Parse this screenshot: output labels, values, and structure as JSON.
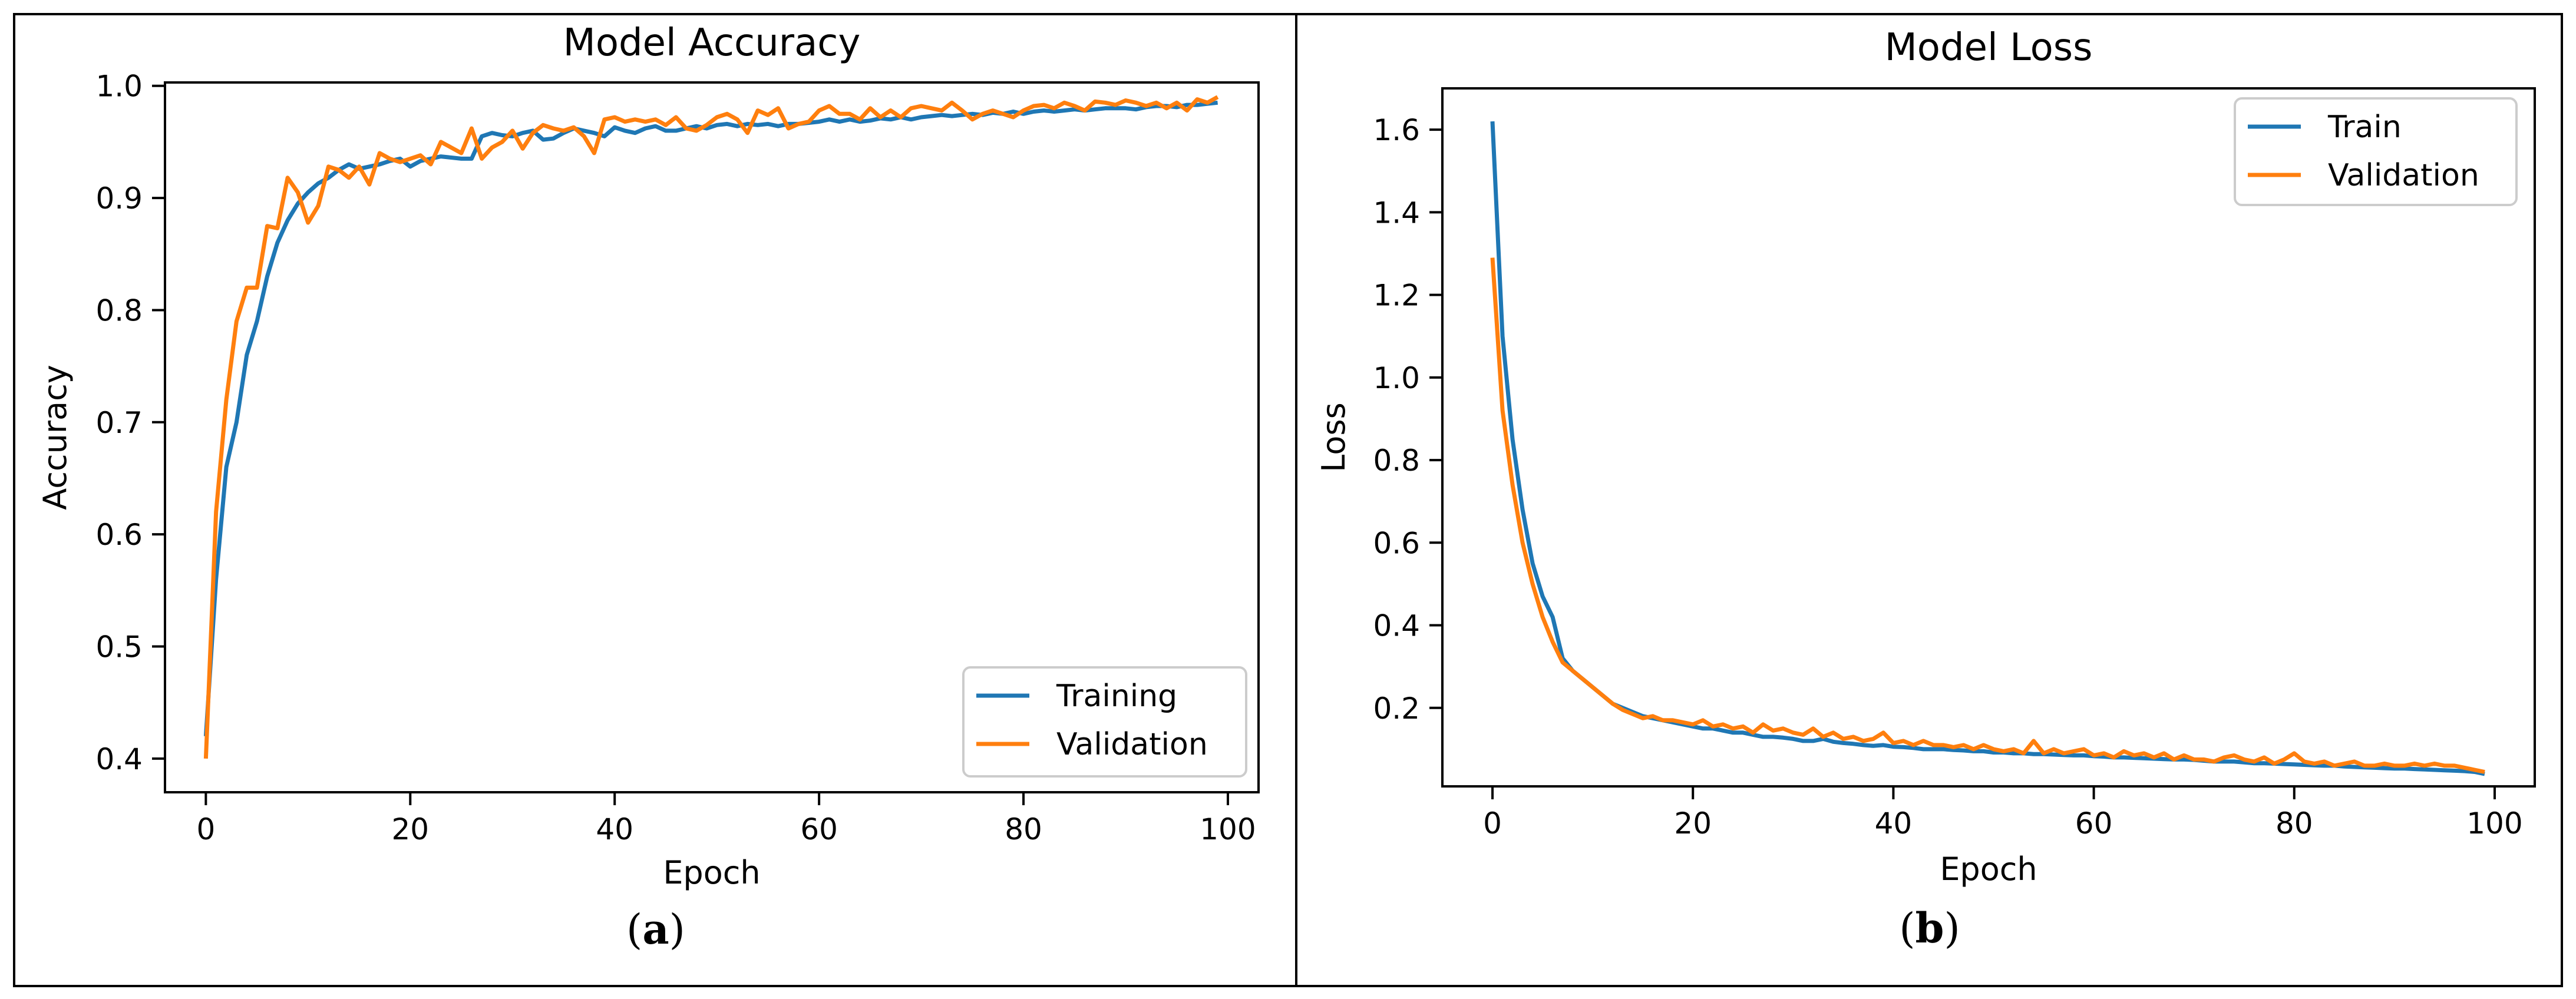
{
  "chart_data": [
    {
      "type": "line",
      "panel_label": "a",
      "title": "Model Accuracy",
      "xlabel": "Epoch",
      "ylabel": "Accuracy",
      "xlim": [
        -4,
        103
      ],
      "ylim": [
        0.37,
        1.003
      ],
      "xticks": [
        0,
        20,
        40,
        60,
        80,
        100
      ],
      "yticks": [
        0.4,
        0.5,
        0.6,
        0.7,
        0.8,
        0.9,
        1.0
      ],
      "xtick_labels": [
        "0",
        "20",
        "40",
        "60",
        "80",
        "100"
      ],
      "ytick_labels": [
        "0.4",
        "0.5",
        "0.6",
        "0.7",
        "0.8",
        "0.9",
        "1.0"
      ],
      "legend_position": "lower-right",
      "series": [
        {
          "name": "Training",
          "color": "#1f77b4",
          "x": [
            0,
            1,
            2,
            3,
            4,
            5,
            6,
            7,
            8,
            9,
            10,
            11,
            12,
            13,
            14,
            15,
            16,
            17,
            18,
            19,
            20,
            21,
            22,
            23,
            24,
            25,
            26,
            27,
            28,
            29,
            30,
            31,
            32,
            33,
            34,
            35,
            36,
            37,
            38,
            39,
            40,
            41,
            42,
            43,
            44,
            45,
            46,
            47,
            48,
            49,
            50,
            51,
            52,
            53,
            54,
            55,
            56,
            57,
            58,
            59,
            60,
            61,
            62,
            63,
            64,
            65,
            66,
            67,
            68,
            69,
            70,
            71,
            72,
            73,
            74,
            75,
            76,
            77,
            78,
            79,
            80,
            81,
            82,
            83,
            84,
            85,
            86,
            87,
            88,
            89,
            90,
            91,
            92,
            93,
            94,
            95,
            96,
            97,
            98,
            99
          ],
          "y": [
            0.42,
            0.56,
            0.66,
            0.7,
            0.76,
            0.79,
            0.83,
            0.86,
            0.88,
            0.895,
            0.905,
            0.913,
            0.918,
            0.925,
            0.93,
            0.926,
            0.928,
            0.93,
            0.933,
            0.935,
            0.928,
            0.933,
            0.935,
            0.937,
            0.936,
            0.935,
            0.935,
            0.955,
            0.958,
            0.956,
            0.955,
            0.958,
            0.96,
            0.952,
            0.953,
            0.958,
            0.962,
            0.96,
            0.958,
            0.955,
            0.963,
            0.96,
            0.958,
            0.962,
            0.964,
            0.96,
            0.96,
            0.962,
            0.964,
            0.962,
            0.965,
            0.966,
            0.964,
            0.966,
            0.965,
            0.966,
            0.964,
            0.966,
            0.966,
            0.967,
            0.968,
            0.97,
            0.968,
            0.97,
            0.968,
            0.969,
            0.971,
            0.97,
            0.972,
            0.97,
            0.972,
            0.973,
            0.974,
            0.973,
            0.974,
            0.975,
            0.974,
            0.976,
            0.975,
            0.977,
            0.975,
            0.977,
            0.978,
            0.977,
            0.978,
            0.979,
            0.978,
            0.979,
            0.98,
            0.98,
            0.98,
            0.979,
            0.981,
            0.982,
            0.982,
            0.981,
            0.983,
            0.983,
            0.984,
            0.985
          ]
        },
        {
          "name": "Validation",
          "color": "#ff7f0e",
          "x": [
            0,
            1,
            2,
            3,
            4,
            5,
            6,
            7,
            8,
            9,
            10,
            11,
            12,
            13,
            14,
            15,
            16,
            17,
            18,
            19,
            20,
            21,
            22,
            23,
            24,
            25,
            26,
            27,
            28,
            29,
            30,
            31,
            32,
            33,
            34,
            35,
            36,
            37,
            38,
            39,
            40,
            41,
            42,
            43,
            44,
            45,
            46,
            47,
            48,
            49,
            50,
            51,
            52,
            53,
            54,
            55,
            56,
            57,
            58,
            59,
            60,
            61,
            62,
            63,
            64,
            65,
            66,
            67,
            68,
            69,
            70,
            71,
            72,
            73,
            74,
            75,
            76,
            77,
            78,
            79,
            80,
            81,
            82,
            83,
            84,
            85,
            86,
            87,
            88,
            89,
            90,
            91,
            92,
            93,
            94,
            95,
            96,
            97,
            98,
            99
          ],
          "y": [
            0.4,
            0.62,
            0.72,
            0.79,
            0.82,
            0.82,
            0.875,
            0.873,
            0.918,
            0.905,
            0.878,
            0.893,
            0.928,
            0.925,
            0.918,
            0.928,
            0.912,
            0.94,
            0.935,
            0.932,
            0.935,
            0.938,
            0.93,
            0.95,
            0.945,
            0.94,
            0.962,
            0.935,
            0.945,
            0.95,
            0.96,
            0.944,
            0.958,
            0.965,
            0.962,
            0.96,
            0.963,
            0.955,
            0.94,
            0.97,
            0.972,
            0.968,
            0.97,
            0.968,
            0.97,
            0.965,
            0.972,
            0.962,
            0.96,
            0.965,
            0.972,
            0.975,
            0.97,
            0.958,
            0.978,
            0.974,
            0.98,
            0.962,
            0.966,
            0.968,
            0.978,
            0.982,
            0.975,
            0.975,
            0.97,
            0.98,
            0.972,
            0.978,
            0.972,
            0.98,
            0.982,
            0.98,
            0.978,
            0.985,
            0.978,
            0.97,
            0.975,
            0.978,
            0.975,
            0.972,
            0.978,
            0.982,
            0.983,
            0.98,
            0.985,
            0.982,
            0.978,
            0.986,
            0.985,
            0.983,
            0.987,
            0.985,
            0.982,
            0.985,
            0.98,
            0.985,
            0.978,
            0.988,
            0.985,
            0.99
          ]
        }
      ]
    },
    {
      "type": "line",
      "panel_label": "b",
      "title": "Model Loss",
      "xlabel": "Epoch",
      "ylabel": "Loss",
      "xlim": [
        -5,
        104
      ],
      "ylim": [
        0.01,
        1.7
      ],
      "xticks": [
        0,
        20,
        40,
        60,
        80,
        100
      ],
      "yticks": [
        0.2,
        0.4,
        0.6,
        0.8,
        1.0,
        1.2,
        1.4,
        1.6
      ],
      "xtick_labels": [
        "0",
        "20",
        "40",
        "60",
        "80",
        "100"
      ],
      "ytick_labels": [
        "0.2",
        "0.4",
        "0.6",
        "0.8",
        "1.0",
        "1.2",
        "1.4",
        "1.6"
      ],
      "legend_position": "upper-right",
      "series": [
        {
          "name": "Train",
          "color": "#1f77b4",
          "x": [
            0,
            1,
            2,
            3,
            4,
            5,
            6,
            7,
            8,
            9,
            10,
            11,
            12,
            13,
            14,
            15,
            16,
            17,
            18,
            19,
            20,
            21,
            22,
            23,
            24,
            25,
            26,
            27,
            28,
            29,
            30,
            31,
            32,
            33,
            34,
            35,
            36,
            37,
            38,
            39,
            40,
            41,
            42,
            43,
            44,
            45,
            46,
            47,
            48,
            49,
            50,
            51,
            52,
            53,
            54,
            55,
            56,
            57,
            58,
            59,
            60,
            61,
            62,
            63,
            64,
            65,
            66,
            67,
            68,
            69,
            70,
            71,
            72,
            73,
            74,
            75,
            76,
            77,
            78,
            79,
            80,
            81,
            82,
            83,
            84,
            85,
            86,
            87,
            88,
            89,
            90,
            91,
            92,
            93,
            94,
            95,
            96,
            97,
            98,
            99
          ],
          "y": [
            1.62,
            1.1,
            0.85,
            0.68,
            0.55,
            0.47,
            0.42,
            0.32,
            0.29,
            0.27,
            0.25,
            0.23,
            0.21,
            0.2,
            0.19,
            0.18,
            0.175,
            0.17,
            0.165,
            0.16,
            0.155,
            0.15,
            0.15,
            0.145,
            0.14,
            0.14,
            0.135,
            0.13,
            0.13,
            0.128,
            0.125,
            0.12,
            0.12,
            0.125,
            0.118,
            0.115,
            0.113,
            0.11,
            0.108,
            0.11,
            0.106,
            0.105,
            0.103,
            0.1,
            0.1,
            0.1,
            0.098,
            0.097,
            0.095,
            0.095,
            0.092,
            0.092,
            0.09,
            0.09,
            0.088,
            0.088,
            0.087,
            0.086,
            0.085,
            0.085,
            0.083,
            0.082,
            0.08,
            0.08,
            0.079,
            0.078,
            0.077,
            0.076,
            0.075,
            0.075,
            0.074,
            0.072,
            0.07,
            0.07,
            0.07,
            0.068,
            0.066,
            0.066,
            0.065,
            0.064,
            0.063,
            0.062,
            0.061,
            0.06,
            0.06,
            0.058,
            0.057,
            0.056,
            0.055,
            0.054,
            0.053,
            0.053,
            0.052,
            0.051,
            0.05,
            0.049,
            0.048,
            0.047,
            0.045,
            0.04
          ]
        },
        {
          "name": "Validation",
          "color": "#ff7f0e",
          "x": [
            0,
            1,
            2,
            3,
            4,
            5,
            6,
            7,
            8,
            9,
            10,
            11,
            12,
            13,
            14,
            15,
            16,
            17,
            18,
            19,
            20,
            21,
            22,
            23,
            24,
            25,
            26,
            27,
            28,
            29,
            30,
            31,
            32,
            33,
            34,
            35,
            36,
            37,
            38,
            39,
            40,
            41,
            42,
            43,
            44,
            45,
            46,
            47,
            48,
            49,
            50,
            51,
            52,
            53,
            54,
            55,
            56,
            57,
            58,
            59,
            60,
            61,
            62,
            63,
            64,
            65,
            66,
            67,
            68,
            69,
            70,
            71,
            72,
            73,
            74,
            75,
            76,
            77,
            78,
            79,
            80,
            81,
            82,
            83,
            84,
            85,
            86,
            87,
            88,
            89,
            90,
            91,
            92,
            93,
            94,
            95,
            96,
            97,
            98,
            99
          ],
          "y": [
            1.29,
            0.92,
            0.74,
            0.6,
            0.5,
            0.42,
            0.36,
            0.31,
            0.29,
            0.27,
            0.25,
            0.23,
            0.21,
            0.195,
            0.185,
            0.175,
            0.18,
            0.17,
            0.17,
            0.165,
            0.16,
            0.17,
            0.155,
            0.16,
            0.15,
            0.155,
            0.14,
            0.16,
            0.145,
            0.15,
            0.14,
            0.135,
            0.15,
            0.13,
            0.14,
            0.125,
            0.13,
            0.12,
            0.125,
            0.14,
            0.115,
            0.12,
            0.11,
            0.12,
            0.11,
            0.11,
            0.105,
            0.11,
            0.1,
            0.11,
            0.1,
            0.095,
            0.1,
            0.09,
            0.12,
            0.09,
            0.1,
            0.09,
            0.095,
            0.1,
            0.085,
            0.09,
            0.08,
            0.095,
            0.085,
            0.09,
            0.08,
            0.09,
            0.075,
            0.085,
            0.075,
            0.075,
            0.07,
            0.08,
            0.085,
            0.075,
            0.07,
            0.08,
            0.065,
            0.075,
            0.09,
            0.07,
            0.065,
            0.07,
            0.06,
            0.065,
            0.07,
            0.06,
            0.06,
            0.065,
            0.06,
            0.06,
            0.065,
            0.06,
            0.065,
            0.06,
            0.06,
            0.055,
            0.05,
            0.045
          ]
        }
      ]
    }
  ]
}
